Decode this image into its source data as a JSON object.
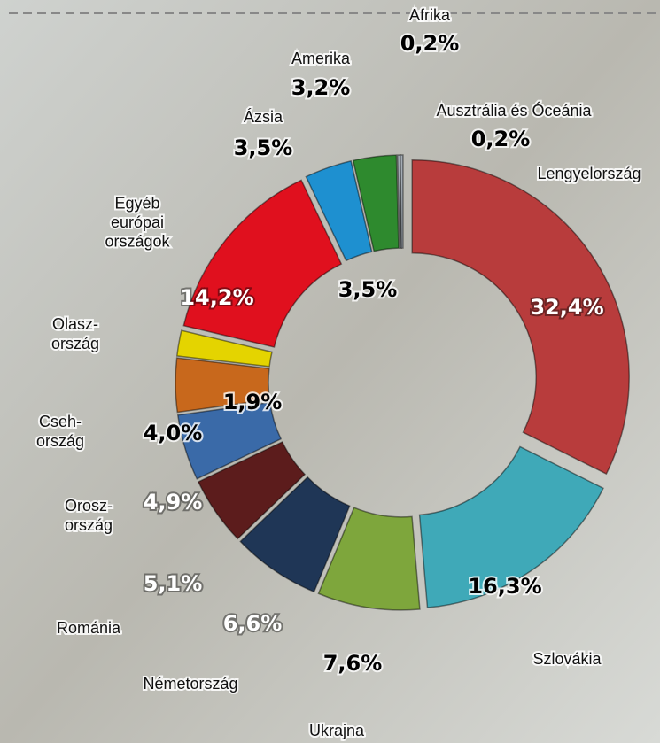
{
  "chart_data": {
    "type": "donut",
    "categories": [
      "Lengyelország",
      "Szlovákia",
      "Ukrajna",
      "Németország",
      "Románia",
      "Orosz-\nország",
      "Cseh-\nország",
      "Olasz-\nország",
      "Egyéb\neurópai\nországok",
      "Ázsia",
      "Amerika",
      "Afrika",
      "Ausztrália és Óceánia"
    ],
    "values": [
      32.4,
      16.3,
      7.6,
      6.6,
      5.1,
      4.9,
      4.0,
      1.9,
      14.2,
      3.5,
      3.2,
      0.2,
      0.2
    ],
    "value_labels": [
      "32,4%",
      "16,3%",
      "7,6%",
      "6,6%",
      "5,1%",
      "4,9%",
      "4,0%",
      "1,9%",
      "14,2%",
      "3,5%",
      "3,2%",
      "0,2%",
      "0,2%"
    ],
    "colors": [
      "#b83c3c",
      "#3fa9b8",
      "#7ea63c",
      "#1f3656",
      "#5c1c1c",
      "#3a6aa8",
      "#c8681c",
      "#e4d400",
      "#e0101e",
      "#1e90d0",
      "#2e8a2e",
      "#a4acb4",
      "#a4acb4"
    ],
    "annotations": [
      "3,5%"
    ]
  }
}
